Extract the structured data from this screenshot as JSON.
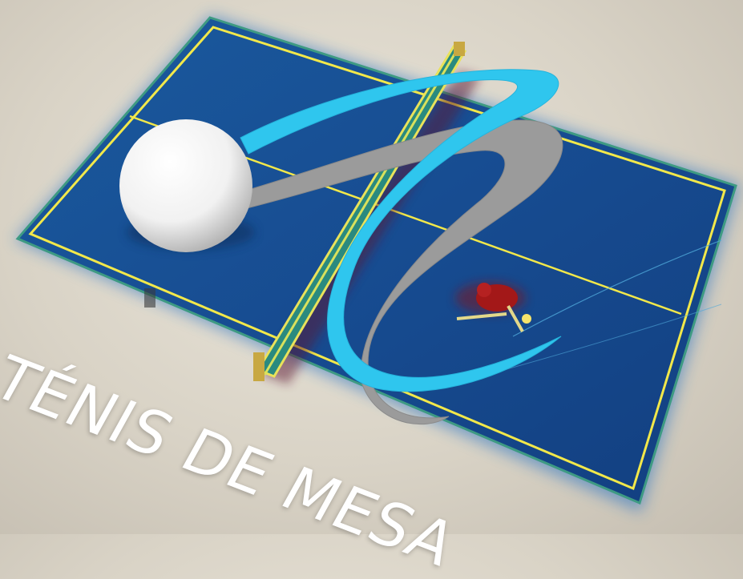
{
  "caption": "TÉNIS DE MESA",
  "colors": {
    "background": "#dcd6ca",
    "table": "#174f95",
    "table_lines": "#f2e84a",
    "swoosh_blue": "#2fc6ee",
    "swoosh_gray": "#9a9a9a",
    "ball": "#ffffff",
    "player": "#9c1414"
  },
  "icons": [
    "table-tennis-table",
    "ping-pong-ball",
    "net",
    "player-figure"
  ]
}
